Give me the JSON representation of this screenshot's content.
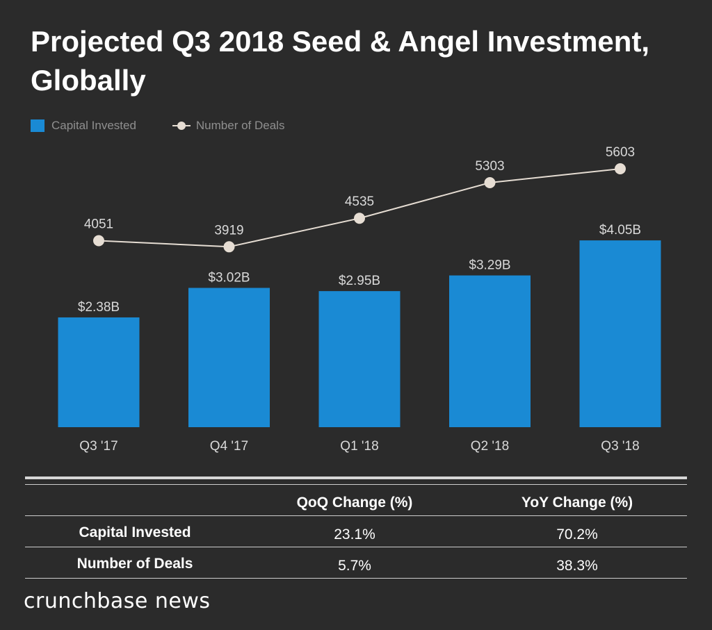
{
  "title": "Projected Q3 2018 Seed & Angel Investment, Globally",
  "legend": {
    "bar_label": "Capital Invested",
    "line_label": "Number of Deals"
  },
  "colors": {
    "background": "#2b2b2b",
    "bar": "#1a8ad4",
    "line": "#e6ddd3",
    "label_text": "#d9d9d9",
    "legend_text": "#8f8f8f"
  },
  "chart_data": {
    "type": "bar",
    "title": "Projected Q3 2018 Seed & Angel Investment, Globally",
    "categories": [
      "Q3 '17",
      "Q4 '17",
      "Q1 '18",
      "Q2 '18",
      "Q3 '18"
    ],
    "series": [
      {
        "name": "Capital Invested",
        "kind": "bar",
        "values": [
          2.38,
          3.02,
          2.95,
          3.29,
          4.05
        ],
        "labels": [
          "$2.38B",
          "$3.02B",
          "$2.95B",
          "$3.29B",
          "$4.05B"
        ]
      },
      {
        "name": "Number of Deals",
        "kind": "line",
        "values": [
          4051,
          3919,
          4535,
          5303,
          5603
        ],
        "labels": [
          "4051",
          "3919",
          "4535",
          "5303",
          "5603"
        ]
      }
    ],
    "xlabel": "",
    "ylabel": "",
    "grid": false,
    "legend_position": "top-left"
  },
  "table": {
    "headers": [
      "QoQ Change (%)",
      "YoY Change (%)"
    ],
    "rows": [
      {
        "label": "Capital Invested",
        "values": [
          "23.1%",
          "70.2%"
        ]
      },
      {
        "label": "Number of Deals",
        "values": [
          "5.7%",
          "38.3%"
        ]
      }
    ]
  },
  "brand": "crunchbase news"
}
